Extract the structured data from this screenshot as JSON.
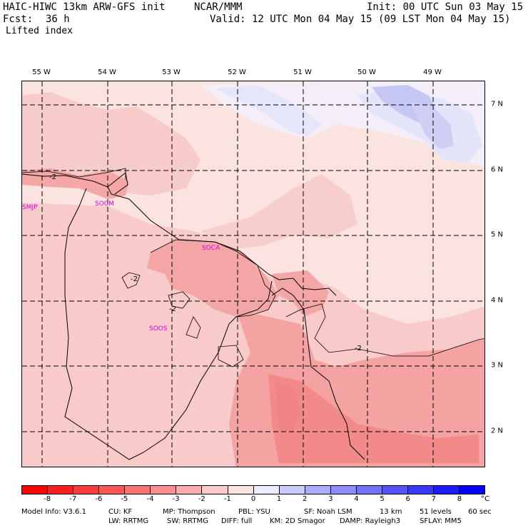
{
  "header": {
    "title": "HAIC-HIWC 13km ARW-GFS init",
    "org": "NCAR/MMM",
    "init": "Init: 00 UTC Sun 03 May 15",
    "fcst_label": "Fcst:",
    "fcst_value": "36 h",
    "valid": "Valid: 12 UTC Mon 04 May 15 (09 LST Mon 04 May 15)",
    "field": "Lifted index"
  },
  "map": {
    "lon_labels": [
      "55 W",
      "54 W",
      "53 W",
      "52 W",
      "51 W",
      "50 W",
      "49 W"
    ],
    "lat_labels": [
      "7 N",
      "6 N",
      "5 N",
      "4 N",
      "3 N",
      "2 N"
    ],
    "stations": [
      "SMJP",
      "SOCM",
      "SOCA",
      "SOOS"
    ],
    "contour_labels": [
      "-2",
      "-2",
      "-2",
      "-2"
    ]
  },
  "colorbar": {
    "labels": [
      "-8",
      "-7",
      "-6",
      "-5",
      "-4",
      "-3",
      "-2",
      "-1",
      "0",
      "1",
      "2",
      "3",
      "4",
      "5",
      "6",
      "7",
      "8"
    ],
    "unit": "°C",
    "colors": [
      "#ff0000",
      "#ff1c1c",
      "#ff3a3a",
      "#ff5555",
      "#ff7272",
      "#ff8f8f",
      "#ffacac",
      "#ffcaca",
      "#fbe3e0",
      "#ececff",
      "#cbcbff",
      "#adadff",
      "#8e8eff",
      "#7272ff",
      "#5555ff",
      "#3838ff",
      "#1c1cff",
      "#0000ff"
    ]
  },
  "footer": {
    "line1": [
      "Model Info: V3.6.1",
      "CU: KF",
      "MP: Thompson",
      "PBL: YSU",
      "SF: Noah LSM",
      "13 km",
      "51 levels",
      "60 sec"
    ],
    "line2": [
      "LW: RRTMG",
      "SW: RRTMG",
      "DIFF: full",
      "KM: 2D Smagor",
      "DAMP: Rayleigh3",
      "SFLAY: MM5"
    ]
  }
}
